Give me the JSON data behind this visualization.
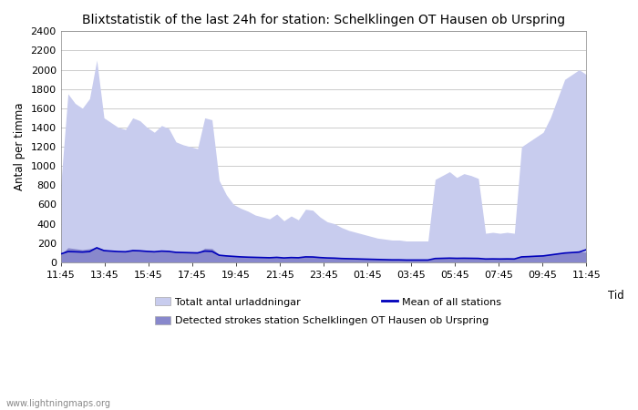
{
  "title": "Blixtstatistik of the last 24h for station: Schelklingen OT Hausen ob Urspring",
  "ylabel": "Antal per timma",
  "xlabel": "Tid",
  "watermark": "www.lightningmaps.org",
  "ylim": [
    0,
    2400
  ],
  "yticks": [
    0,
    200,
    400,
    600,
    800,
    1000,
    1200,
    1400,
    1600,
    1800,
    2000,
    2200,
    2400
  ],
  "xtick_labels": [
    "11:45",
    "13:45",
    "15:45",
    "17:45",
    "19:45",
    "21:45",
    "23:45",
    "01:45",
    "03:45",
    "05:45",
    "07:45",
    "09:45",
    "11:45"
  ],
  "legend_entries": [
    "Totalt antal urladdningar",
    "Mean of all stations",
    "Detected strokes station Schelklingen OT Hausen ob Urspring"
  ],
  "color_total": "#c8ccee",
  "color_detected": "#8888cc",
  "color_mean": "#0000bb",
  "bg_color": "#ffffff",
  "grid_color": "#cccccc",
  "total_urladdningar": [
    800,
    1750,
    1650,
    1600,
    1700,
    2100,
    1500,
    1450,
    1400,
    1380,
    1500,
    1470,
    1400,
    1350,
    1420,
    1390,
    1250,
    1220,
    1200,
    1180,
    1500,
    1480,
    850,
    700,
    600,
    560,
    530,
    490,
    470,
    450,
    500,
    430,
    480,
    440,
    550,
    540,
    470,
    420,
    400,
    360,
    330,
    310,
    290,
    270,
    250,
    240,
    230,
    230,
    220,
    220,
    220,
    220,
    860,
    900,
    940,
    880,
    920,
    900,
    870,
    300,
    310,
    300,
    310,
    300,
    1200,
    1250,
    1300,
    1350,
    1500,
    1700,
    1900,
    1950,
    2000,
    1950
  ],
  "detected_strokes": [
    80,
    150,
    140,
    130,
    140,
    155,
    130,
    120,
    115,
    112,
    130,
    125,
    120,
    115,
    120,
    118,
    110,
    105,
    100,
    98,
    145,
    142,
    80,
    70,
    65,
    60,
    58,
    55,
    52,
    50,
    55,
    48,
    52,
    50,
    60,
    58,
    52,
    48,
    46,
    42,
    40,
    38,
    36,
    34,
    32,
    30,
    28,
    28,
    26,
    26,
    26,
    26,
    40,
    42,
    44,
    42,
    43,
    42,
    41,
    35,
    36,
    35,
    36,
    35,
    60,
    65,
    68,
    70,
    80,
    90,
    100,
    105,
    110,
    105
  ],
  "mean_all": [
    85,
    110,
    108,
    105,
    110,
    150,
    120,
    115,
    110,
    108,
    120,
    118,
    112,
    108,
    115,
    112,
    102,
    100,
    98,
    96,
    115,
    112,
    72,
    65,
    60,
    55,
    52,
    50,
    48,
    46,
    50,
    44,
    48,
    46,
    55,
    54,
    48,
    44,
    42,
    38,
    36,
    34,
    32,
    30,
    28,
    26,
    24,
    24,
    22,
    22,
    22,
    22,
    38,
    40,
    42,
    40,
    41,
    40,
    39,
    33,
    34,
    33,
    34,
    33,
    55,
    58,
    62,
    65,
    75,
    85,
    95,
    100,
    105,
    130
  ]
}
